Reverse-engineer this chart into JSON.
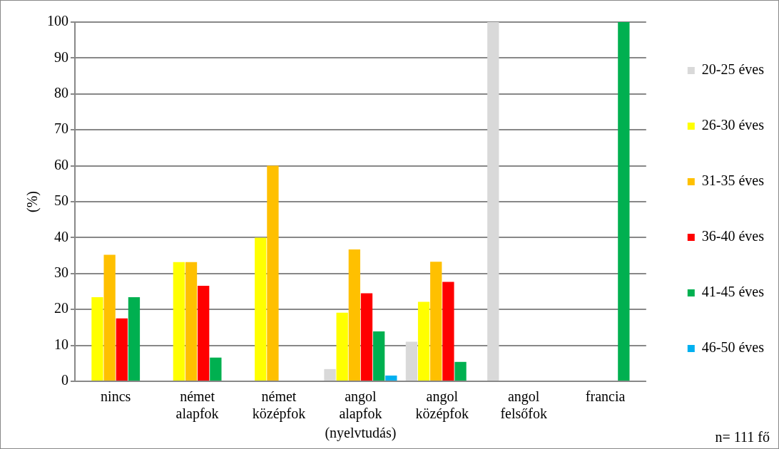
{
  "chart_data": {
    "type": "bar",
    "xlabel": "(nyelvtudás)",
    "ylabel": "(%)",
    "categories": [
      "nincs",
      "német alapfok",
      "német középfok",
      "angol alapfok",
      "angol középfok",
      "angol felsőfok",
      "francia"
    ],
    "series": [
      {
        "name": "20-25 éves",
        "color": "#d9d9d9",
        "values": [
          0,
          0,
          0,
          3.4,
          11.0,
          100,
          0
        ]
      },
      {
        "name": "26-30 éves",
        "color": "#ffff00",
        "values": [
          23.4,
          33.2,
          40,
          19.1,
          22.1,
          0,
          0
        ]
      },
      {
        "name": "31-35 éves",
        "color": "#ffc000",
        "values": [
          35.2,
          33.2,
          60,
          36.7,
          33.3,
          0,
          0
        ]
      },
      {
        "name": "36-40 éves",
        "color": "#ff0000",
        "values": [
          17.5,
          26.6,
          0,
          24.5,
          27.7,
          0,
          0
        ]
      },
      {
        "name": "41-45 éves",
        "color": "#00b050",
        "values": [
          23.4,
          6.6,
          0,
          13.9,
          5.4,
          0,
          100
        ]
      },
      {
        "name": "46-50 éves",
        "color": "#00b0f0",
        "values": [
          0,
          0,
          0,
          1.6,
          0,
          0,
          0
        ]
      }
    ],
    "ylim": [
      0,
      100
    ],
    "yticks": [
      0,
      10,
      20,
      30,
      40,
      50,
      60,
      70,
      80,
      90,
      100
    ],
    "grid": "y",
    "legend": "right",
    "annotations": [
      "n= 111 fő"
    ]
  }
}
